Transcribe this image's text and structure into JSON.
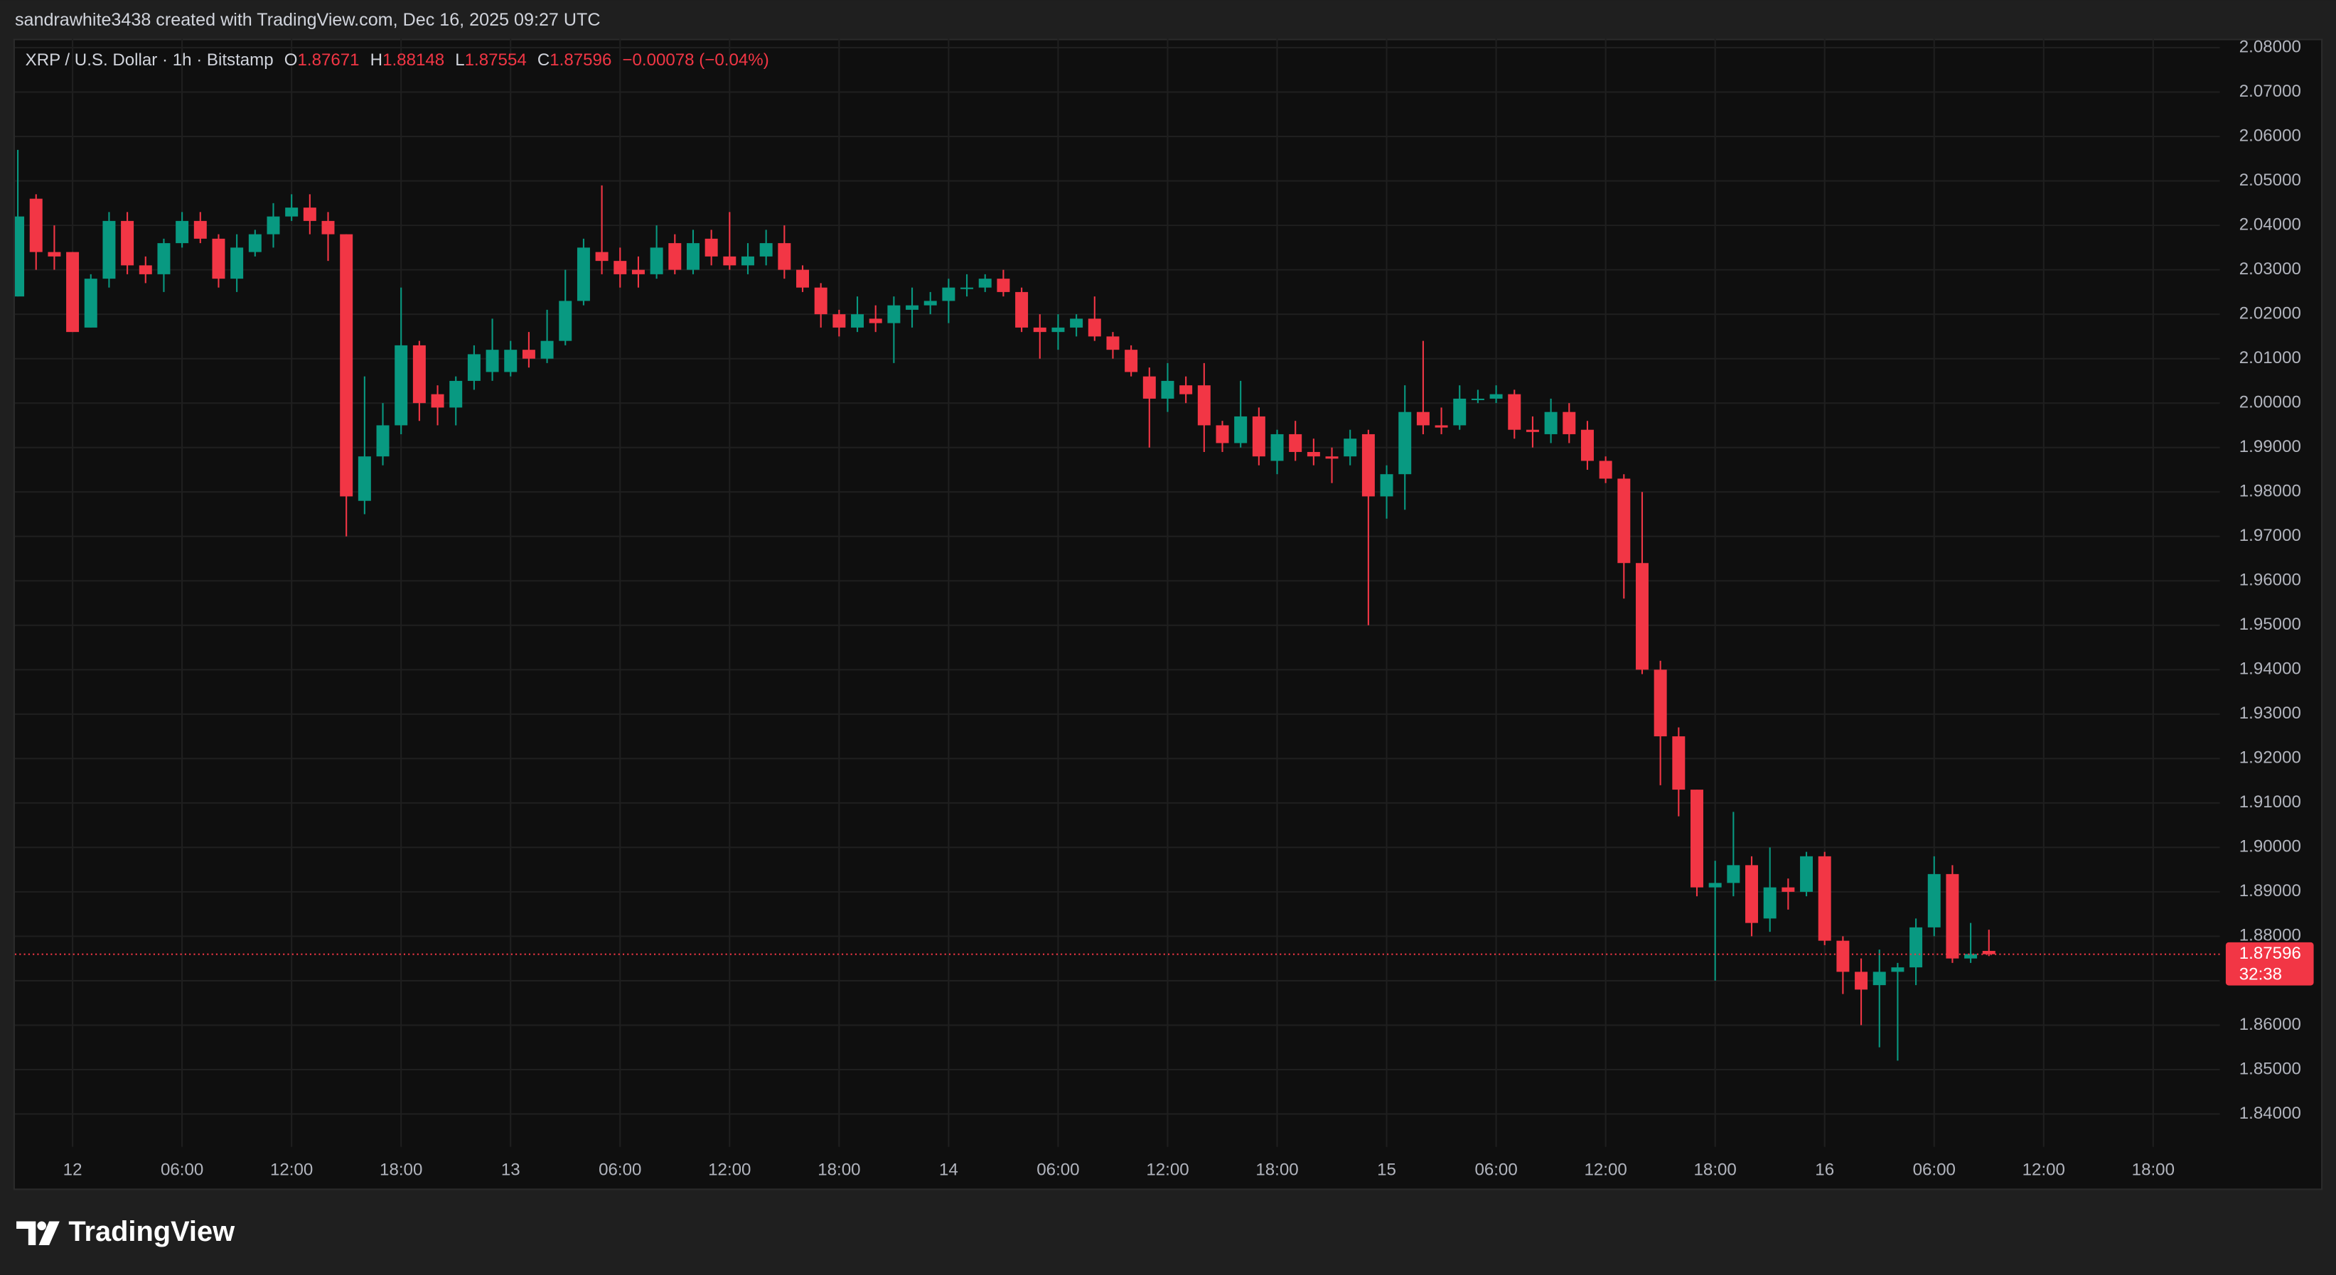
{
  "header": {
    "credit": "sandrawhite3438 created with TradingView.com, Dec 16, 2025 09:27 UTC"
  },
  "footer": {
    "brand": "TradingView"
  },
  "chart_data": {
    "type": "candlestick",
    "title": "XRP / U.S. Dollar · 1h · Bitstamp",
    "ohlc_labels": [
      "O",
      "H",
      "L",
      "C"
    ],
    "change": "−0.00078 (−0.04%)",
    "countdown": "32:38",
    "up_color": "#089981",
    "down_color": "#f23645",
    "grid": true,
    "open": [
      2.024,
      2.046,
      2.034,
      2.034,
      2.017,
      2.028,
      2.041,
      2.031,
      2.029,
      2.036,
      2.041,
      2.037,
      2.028,
      2.034,
      2.038,
      2.042,
      2.044,
      2.041,
      2.038,
      1.978,
      1.988,
      1.995,
      2.013,
      2.002,
      1.999,
      2.005,
      2.007,
      2.007,
      2.012,
      2.01,
      2.014,
      2.023,
      2.034,
      2.032,
      2.03,
      2.029,
      2.036,
      2.03,
      2.037,
      2.033,
      2.031,
      2.033,
      2.036,
      2.03,
      2.026,
      2.02,
      2.017,
      2.019,
      2.018,
      2.021,
      2.022,
      2.023,
      2.026,
      2.026,
      2.028,
      2.025,
      2.017,
      2.016,
      2.017,
      2.019,
      2.015,
      2.012,
      2.006,
      2.001,
      2.004,
      2.004,
      1.995,
      1.991,
      1.997,
      1.987,
      1.993,
      1.989,
      1.988,
      1.988,
      1.993,
      1.979,
      1.984,
      1.998,
      1.995,
      1.995,
      2.001,
      2.001,
      2.002,
      1.994,
      1.993,
      1.998,
      1.994,
      1.987,
      1.983,
      1.964,
      1.94,
      1.925,
      1.913,
      1.891,
      1.892,
      1.896,
      1.884,
      1.891,
      1.89,
      1.898,
      1.879,
      1.872,
      1.869,
      1.872,
      1.873,
      1.882,
      1.894,
      1.875,
      1.87671
    ],
    "high": [
      2.057,
      2.047,
      2.04,
      2.034,
      2.029,
      2.043,
      2.043,
      2.033,
      2.037,
      2.043,
      2.043,
      2.038,
      2.038,
      2.039,
      2.045,
      2.047,
      2.047,
      2.043,
      2.038,
      2.006,
      2.0,
      2.026,
      2.014,
      2.004,
      2.006,
      2.013,
      2.019,
      2.014,
      2.016,
      2.021,
      2.03,
      2.037,
      2.049,
      2.035,
      2.033,
      2.04,
      2.038,
      2.039,
      2.039,
      2.043,
      2.036,
      2.039,
      2.04,
      2.031,
      2.027,
      2.021,
      2.024,
      2.022,
      2.024,
      2.026,
      2.025,
      2.028,
      2.029,
      2.029,
      2.03,
      2.026,
      2.02,
      2.02,
      2.02,
      2.024,
      2.016,
      2.013,
      2.008,
      2.009,
      2.006,
      2.009,
      1.996,
      2.005,
      1.999,
      1.994,
      1.996,
      1.992,
      1.99,
      1.994,
      1.994,
      1.986,
      2.004,
      2.014,
      1.999,
      2.004,
      2.003,
      2.004,
      2.003,
      1.997,
      2.001,
      2.0,
      1.996,
      1.988,
      1.984,
      1.98,
      1.942,
      1.927,
      1.913,
      1.897,
      1.908,
      1.898,
      1.9,
      1.893,
      1.899,
      1.899,
      1.88,
      1.875,
      1.877,
      1.874,
      1.884,
      1.898,
      1.896,
      1.883,
      1.88148
    ],
    "low": [
      2.024,
      2.03,
      2.03,
      2.016,
      2.017,
      2.026,
      2.029,
      2.027,
      2.025,
      2.035,
      2.036,
      2.026,
      2.025,
      2.033,
      2.035,
      2.041,
      2.038,
      2.032,
      1.97,
      1.975,
      1.986,
      1.993,
      1.996,
      1.995,
      1.995,
      2.003,
      2.005,
      2.006,
      2.008,
      2.009,
      2.013,
      2.022,
      2.029,
      2.026,
      2.026,
      2.028,
      2.029,
      2.029,
      2.031,
      2.03,
      2.029,
      2.031,
      2.028,
      2.025,
      2.017,
      2.015,
      2.016,
      2.016,
      2.009,
      2.017,
      2.02,
      2.018,
      2.024,
      2.025,
      2.024,
      2.016,
      2.01,
      2.012,
      2.015,
      2.014,
      2.01,
      2.006,
      1.99,
      1.998,
      2.0,
      1.989,
      1.989,
      1.99,
      1.986,
      1.984,
      1.987,
      1.986,
      1.982,
      1.986,
      1.95,
      1.974,
      1.976,
      1.993,
      1.993,
      1.994,
      2.0,
      2.0,
      1.992,
      1.99,
      1.991,
      1.991,
      1.985,
      1.982,
      1.956,
      1.939,
      1.914,
      1.907,
      1.889,
      1.87,
      1.889,
      1.88,
      1.881,
      1.886,
      1.889,
      1.878,
      1.867,
      1.86,
      1.855,
      1.852,
      1.869,
      1.88,
      1.874,
      1.874,
      1.87554
    ],
    "close": [
      2.042,
      2.034,
      2.033,
      2.016,
      2.028,
      2.041,
      2.031,
      2.029,
      2.036,
      2.041,
      2.037,
      2.028,
      2.035,
      2.038,
      2.042,
      2.044,
      2.041,
      2.038,
      1.979,
      1.988,
      1.995,
      2.013,
      2.0,
      1.999,
      2.005,
      2.011,
      2.012,
      2.012,
      2.01,
      2.014,
      2.023,
      2.035,
      2.032,
      2.029,
      2.029,
      2.035,
      2.03,
      2.036,
      2.033,
      2.031,
      2.033,
      2.036,
      2.03,
      2.026,
      2.02,
      2.017,
      2.02,
      2.018,
      2.022,
      2.022,
      2.023,
      2.026,
      2.026,
      2.028,
      2.025,
      2.017,
      2.016,
      2.017,
      2.019,
      2.015,
      2.012,
      2.007,
      2.001,
      2.005,
      2.002,
      1.995,
      1.991,
      1.997,
      1.988,
      1.993,
      1.989,
      1.988,
      1.9875,
      1.992,
      1.979,
      1.984,
      1.998,
      1.995,
      1.9945,
      2.001,
      2.001,
      2.002,
      1.994,
      1.9935,
      1.998,
      1.993,
      1.987,
      1.983,
      1.964,
      1.94,
      1.925,
      1.913,
      1.891,
      1.892,
      1.896,
      1.883,
      1.891,
      1.89,
      1.898,
      1.879,
      1.872,
      1.868,
      1.872,
      1.873,
      1.882,
      1.894,
      1.875,
      1.876,
      1.87596
    ],
    "xlim": [
      -0.16,
      120.65
    ],
    "xticks": [
      {
        "value": 3,
        "label": "12"
      },
      {
        "value": 9,
        "label": "06:00"
      },
      {
        "value": 15,
        "label": "12:00"
      },
      {
        "value": 21,
        "label": "18:00"
      },
      {
        "value": 27,
        "label": "13"
      },
      {
        "value": 33,
        "label": "06:00"
      },
      {
        "value": 39,
        "label": "12:00"
      },
      {
        "value": 45,
        "label": "18:00"
      },
      {
        "value": 51,
        "label": "14"
      },
      {
        "value": 57,
        "label": "06:00"
      },
      {
        "value": 63,
        "label": "12:00"
      },
      {
        "value": 69,
        "label": "18:00"
      },
      {
        "value": 75,
        "label": "15"
      },
      {
        "value": 81,
        "label": "06:00"
      },
      {
        "value": 87,
        "label": "12:00"
      },
      {
        "value": 93,
        "label": "18:00"
      },
      {
        "value": 99,
        "label": "16"
      },
      {
        "value": 105,
        "label": "06:00"
      },
      {
        "value": 111,
        "label": "12:00"
      },
      {
        "value": 117,
        "label": "18:00"
      }
    ],
    "ylim": [
      1.8326,
      2.082
    ],
    "yticks": [
      {
        "value": 1.84,
        "label": "1.84000"
      },
      {
        "value": 1.85,
        "label": "1.85000"
      },
      {
        "value": 1.86,
        "label": "1.86000"
      },
      {
        "value": 1.87,
        "label": "1.87000"
      },
      {
        "value": 1.88,
        "label": "1.88000"
      },
      {
        "value": 1.89,
        "label": "1.89000"
      },
      {
        "value": 1.9,
        "label": "1.90000"
      },
      {
        "value": 1.91,
        "label": "1.91000"
      },
      {
        "value": 1.92,
        "label": "1.92000"
      },
      {
        "value": 1.93,
        "label": "1.93000"
      },
      {
        "value": 1.94,
        "label": "1.94000"
      },
      {
        "value": 1.95,
        "label": "1.95000"
      },
      {
        "value": 1.96,
        "label": "1.96000"
      },
      {
        "value": 1.97,
        "label": "1.97000"
      },
      {
        "value": 1.98,
        "label": "1.98000"
      },
      {
        "value": 1.99,
        "label": "1.99000"
      },
      {
        "value": 2.0,
        "label": "2.00000"
      },
      {
        "value": 2.01,
        "label": "2.01000"
      },
      {
        "value": 2.02,
        "label": "2.02000"
      },
      {
        "value": 2.03,
        "label": "2.03000"
      },
      {
        "value": 2.04,
        "label": "2.04000"
      },
      {
        "value": 2.05,
        "label": "2.05000"
      },
      {
        "value": 2.06,
        "label": "2.06000"
      },
      {
        "value": 2.07,
        "label": "2.07000"
      },
      {
        "value": 2.08,
        "label": "2.08000"
      }
    ]
  }
}
